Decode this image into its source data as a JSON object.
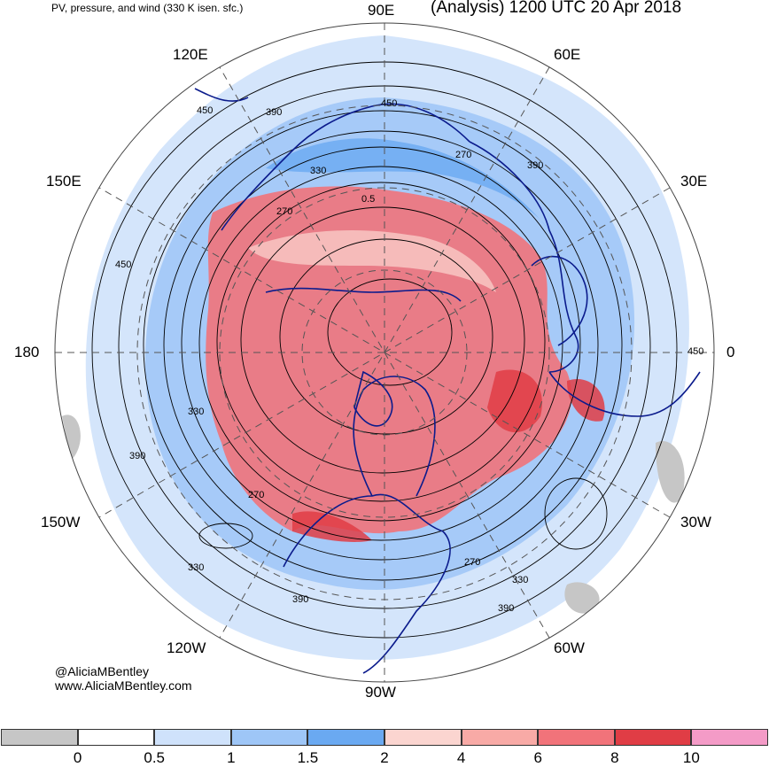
{
  "header": {
    "subtitle": "PV, pressure, and wind (330 K isen. sfc.)",
    "title": "(Analysis) 1200 UTC 20 Apr 2018"
  },
  "longitude_labels": [
    "90E",
    "60E",
    "30E",
    "0",
    "30W",
    "60W",
    "90W",
    "120W",
    "150W",
    "180",
    "150E",
    "120E"
  ],
  "contour_labels": [
    "450",
    "390",
    "450",
    "270",
    "330",
    "390",
    "270",
    "0.5",
    "450",
    "450",
    "330",
    "390",
    "270",
    "330",
    "330",
    "270",
    "390",
    "390"
  ],
  "credits": {
    "handle": "@AliciaMBentley",
    "website": "www.AliciaMBentley.com"
  },
  "colorbar": {
    "ticks": [
      "0",
      "0.5",
      "1",
      "1.5",
      "2",
      "4",
      "6",
      "8",
      "10"
    ],
    "colors": [
      "#c6c6c6",
      "#ffffff",
      "#cfe2fb",
      "#9ec6f7",
      "#6aa9f1",
      "#fbd5d0",
      "#f8aaa6",
      "#f1737a",
      "#e03d45",
      "#f49bc7"
    ]
  },
  "colors": {
    "coastline": "#0b1b8c",
    "contour": "#000000",
    "grid": "#555555"
  }
}
